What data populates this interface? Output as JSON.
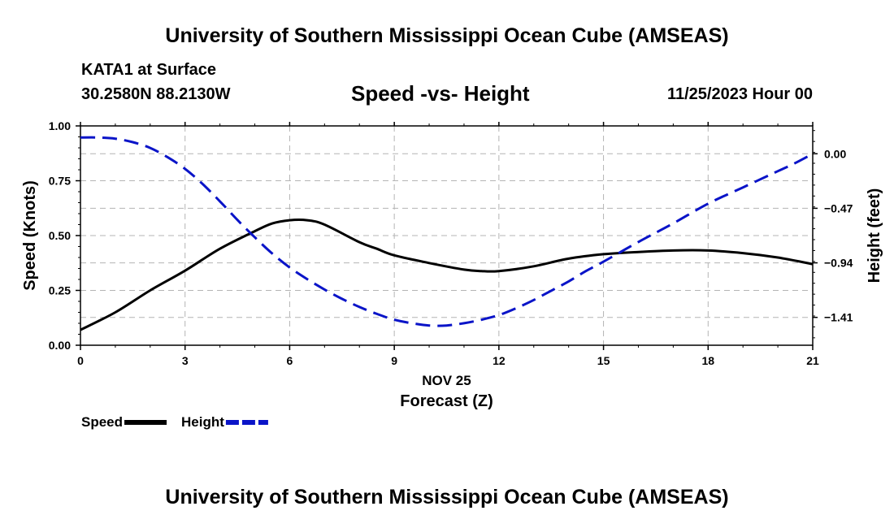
{
  "header": {
    "title_top": "University of Southern Mississippi Ocean Cube (AMSEAS)",
    "station": "KATA1 at Surface",
    "coords": "30.2580N  88.2130W",
    "datetime": "11/25/2023 Hour 00",
    "title_bottom": "University of Southern Mississippi Ocean Cube (AMSEAS)"
  },
  "chart_data": {
    "type": "line",
    "title": "Speed -vs- Height",
    "xlabel_date": "NOV 25",
    "xlabel": "Forecast (Z)",
    "ylabel_left": "Speed (Knots)",
    "ylabel_right": "Height (feet)",
    "xlim": [
      0,
      21
    ],
    "ylim_left": [
      0,
      1.0
    ],
    "ylim_right": [
      -1.65,
      0.24
    ],
    "grid": true,
    "x_ticks": [
      0,
      3,
      6,
      9,
      12,
      15,
      18,
      21
    ],
    "x_tick_labels": [
      "0",
      "3",
      "6",
      "9",
      "12",
      "15",
      "18",
      "21"
    ],
    "y_left_ticks": [
      0,
      0.25,
      0.5,
      0.75,
      1.0
    ],
    "y_left_tick_labels": [
      "0.00",
      "0.25",
      "0.50",
      "0.75",
      "1.00"
    ],
    "y_right_ticks": [
      0,
      -0.47,
      -0.94,
      -1.41
    ],
    "y_right_tick_labels": [
      "0.00",
      "−0.47",
      "−0.94",
      "−1.41"
    ],
    "series": [
      {
        "name": "Speed",
        "axis": "left",
        "color": "#000000",
        "dash": "solid",
        "x": [
          0,
          1,
          2,
          3,
          4,
          5,
          5.5,
          6,
          6.5,
          7,
          8,
          8.5,
          9,
          10,
          11,
          11.5,
          12,
          13,
          14,
          15,
          16,
          17,
          18,
          19,
          20,
          21
        ],
        "y": [
          0.07,
          0.15,
          0.25,
          0.34,
          0.44,
          0.52,
          0.555,
          0.57,
          0.57,
          0.55,
          0.47,
          0.44,
          0.41,
          0.375,
          0.345,
          0.338,
          0.338,
          0.36,
          0.395,
          0.415,
          0.425,
          0.432,
          0.432,
          0.42,
          0.4,
          0.37
        ]
      },
      {
        "name": "Height",
        "axis": "right",
        "color": "#0a14c8",
        "dash": "dashed",
        "x": [
          0,
          0.5,
          1,
          1.5,
          2,
          2.5,
          3,
          3.5,
          4,
          4.5,
          5,
          5.5,
          6,
          6.5,
          7,
          7.5,
          8,
          8.5,
          9,
          9.5,
          10,
          10.5,
          11,
          11.5,
          12,
          12.5,
          13,
          13.5,
          14,
          14.5,
          15,
          16,
          17,
          18,
          19,
          20,
          20.5,
          21
        ],
        "y": [
          0.14,
          0.14,
          0.13,
          0.1,
          0.05,
          -0.03,
          -0.13,
          -0.26,
          -0.41,
          -0.57,
          -0.72,
          -0.86,
          -0.98,
          -1.08,
          -1.17,
          -1.25,
          -1.32,
          -1.38,
          -1.43,
          -1.46,
          -1.48,
          -1.48,
          -1.46,
          -1.43,
          -1.39,
          -1.33,
          -1.26,
          -1.18,
          -1.1,
          -1.01,
          -0.93,
          -0.76,
          -0.6,
          -0.43,
          -0.29,
          -0.15,
          -0.08,
          0.0
        ]
      }
    ]
  }
}
